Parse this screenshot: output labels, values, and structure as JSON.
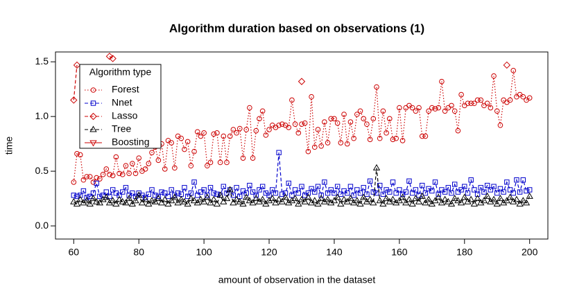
{
  "chart_data": {
    "type": "line",
    "title": "Algorithm duration based on observations (1)",
    "xlabel": "amount of observation in the dataset",
    "ylabel": "time",
    "legend_title": "Algorithm type",
    "legend_position": "topleft",
    "x": [
      60,
      61,
      62,
      63,
      64,
      65,
      66,
      67,
      68,
      69,
      70,
      71,
      72,
      73,
      74,
      75,
      76,
      77,
      78,
      79,
      80,
      81,
      82,
      83,
      84,
      85,
      86,
      87,
      88,
      89,
      90,
      91,
      92,
      93,
      94,
      95,
      96,
      97,
      98,
      99,
      100,
      101,
      102,
      103,
      104,
      105,
      106,
      107,
      108,
      109,
      110,
      111,
      112,
      113,
      114,
      115,
      116,
      117,
      118,
      119,
      120,
      121,
      122,
      123,
      124,
      125,
      126,
      127,
      128,
      129,
      130,
      131,
      132,
      133,
      134,
      135,
      136,
      137,
      138,
      139,
      140,
      141,
      142,
      143,
      144,
      145,
      146,
      147,
      148,
      149,
      150,
      151,
      152,
      153,
      154,
      155,
      156,
      157,
      158,
      159,
      160,
      161,
      162,
      163,
      164,
      165,
      166,
      167,
      168,
      169,
      170,
      171,
      172,
      173,
      174,
      175,
      176,
      177,
      178,
      179,
      180,
      181,
      182,
      183,
      184,
      185,
      186,
      187,
      188,
      189,
      190,
      191,
      192,
      193,
      194,
      195,
      196,
      197,
      198,
      199,
      200
    ],
    "xlim": [
      54.4,
      205.6
    ],
    "xticks": [
      60,
      80,
      100,
      120,
      140,
      160,
      180,
      200
    ],
    "ylim": [
      -0.12,
      1.59
    ],
    "yticks": [
      {
        "value": 0,
        "label": "0.0"
      },
      0.5,
      {
        "value": 1,
        "label": "1.0"
      },
      1.5
    ],
    "series": [
      {
        "name": "Forest",
        "color": "#cc0000",
        "marker": "circle",
        "dash": "dotted",
        "values": [
          0.4,
          0.66,
          0.65,
          0.42,
          0.45,
          0.45,
          0.4,
          0.44,
          0.43,
          0.47,
          0.52,
          0.47,
          0.46,
          0.63,
          0.48,
          0.47,
          0.55,
          0.48,
          0.57,
          0.48,
          0.62,
          0.5,
          0.52,
          0.57,
          0.67,
          0.72,
          0.6,
          0.75,
          0.52,
          0.78,
          0.76,
          0.53,
          0.82,
          0.8,
          0.7,
          0.77,
          0.55,
          0.68,
          0.86,
          0.82,
          0.85,
          0.55,
          0.58,
          0.84,
          0.85,
          0.58,
          0.82,
          0.58,
          0.82,
          0.88,
          0.85,
          0.89,
          0.62,
          0.88,
          1.08,
          0.62,
          0.87,
          0.98,
          1.05,
          0.83,
          0.88,
          0.92,
          0.9,
          0.92,
          0.93,
          0.92,
          0.9,
          1.15,
          0.93,
          0.85,
          0.93,
          0.94,
          0.68,
          1.18,
          0.72,
          0.88,
          0.73,
          0.95,
          0.76,
          0.98,
          0.98,
          0.94,
          0.76,
          1.02,
          0.75,
          0.95,
          0.8,
          1.02,
          1.05,
          0.98,
          0.93,
          0.79,
          0.98,
          1.27,
          0.8,
          1.05,
          0.85,
          0.98,
          0.79,
          0.8,
          1.08,
          0.78,
          1.08,
          1.1,
          1.08,
          1.05,
          1.08,
          0.82,
          0.82,
          1.05,
          1.08,
          1.07,
          1.08,
          1.32,
          1.05,
          1.08,
          1.1,
          1.05,
          0.87,
          1.2,
          1.1,
          1.12,
          1.12,
          1.12,
          1.15,
          1.15,
          1.1,
          1.12,
          1.08,
          1.37,
          1.05,
          0.92,
          1.15,
          1.13,
          1.15,
          1.42,
          1.18,
          1.2,
          1.18,
          1.15,
          1.17
        ]
      },
      {
        "name": "Nnet",
        "color": "#0000cc",
        "marker": "square",
        "dash": "dashed",
        "values": [
          0.28,
          0.27,
          0.28,
          0.32,
          0.26,
          0.27,
          0.3,
          0.39,
          0.27,
          0.28,
          0.31,
          0.27,
          0.33,
          0.3,
          0.28,
          0.31,
          0.35,
          0.28,
          0.3,
          0.27,
          0.3,
          0.28,
          0.26,
          0.29,
          0.33,
          0.28,
          0.27,
          0.31,
          0.3,
          0.27,
          0.33,
          0.28,
          0.3,
          0.29,
          0.35,
          0.27,
          0.3,
          0.4,
          0.28,
          0.31,
          0.33,
          0.28,
          0.35,
          0.3,
          0.29,
          0.28,
          0.36,
          0.3,
          0.33,
          0.28,
          0.35,
          0.27,
          0.32,
          0.3,
          0.37,
          0.31,
          0.28,
          0.33,
          0.36,
          0.3,
          0.28,
          0.33,
          0.3,
          0.67,
          0.29,
          0.3,
          0.39,
          0.28,
          0.33,
          0.3,
          0.36,
          0.28,
          0.3,
          0.34,
          0.31,
          0.36,
          0.28,
          0.4,
          0.3,
          0.33,
          0.3,
          0.36,
          0.29,
          0.32,
          0.3,
          0.36,
          0.28,
          0.33,
          0.3,
          0.35,
          0.29,
          0.41,
          0.31,
          0.3,
          0.37,
          0.29,
          0.33,
          0.31,
          0.4,
          0.3,
          0.33,
          0.29,
          0.31,
          0.41,
          0.3,
          0.33,
          0.28,
          0.37,
          0.3,
          0.34,
          0.32,
          0.4,
          0.29,
          0.33,
          0.31,
          0.35,
          0.3,
          0.38,
          0.31,
          0.33,
          0.36,
          0.3,
          0.42,
          0.33,
          0.29,
          0.35,
          0.31,
          0.37,
          0.33,
          0.36,
          0.3,
          0.34,
          0.31,
          0.4,
          0.33,
          0.3,
          0.42,
          0.31,
          0.42,
          0.32,
          0.33
        ]
      },
      {
        "name": "Lasso",
        "color": "#cc0000",
        "marker": "diamond",
        "dash": "dashed",
        "values": [
          1.15,
          1.47,
          null,
          null,
          null,
          null,
          null,
          null,
          null,
          null,
          null,
          1.55,
          1.53,
          null,
          null,
          null,
          null,
          null,
          null,
          null,
          null,
          null,
          null,
          null,
          null,
          null,
          null,
          null,
          null,
          null,
          null,
          null,
          null,
          null,
          null,
          null,
          null,
          null,
          null,
          null,
          null,
          null,
          null,
          null,
          null,
          null,
          null,
          null,
          null,
          null,
          null,
          null,
          null,
          null,
          null,
          null,
          null,
          null,
          null,
          null,
          null,
          null,
          null,
          null,
          null,
          null,
          null,
          null,
          null,
          null,
          1.32,
          null,
          null,
          null,
          null,
          null,
          null,
          null,
          null,
          null,
          null,
          null,
          null,
          null,
          null,
          null,
          null,
          null,
          null,
          null,
          null,
          null,
          null,
          null,
          null,
          null,
          null,
          null,
          null,
          null,
          null,
          null,
          null,
          null,
          null,
          null,
          null,
          null,
          null,
          null,
          null,
          null,
          null,
          null,
          null,
          null,
          null,
          null,
          null,
          null,
          null,
          null,
          null,
          null,
          null,
          null,
          null,
          null,
          null,
          null,
          null,
          null,
          null,
          1.47,
          null,
          null,
          null,
          null,
          null,
          null,
          null
        ]
      },
      {
        "name": "Tree",
        "color": "#000000",
        "marker": "triangle",
        "dash": "dashed",
        "values": [
          0.22,
          0.2,
          0.24,
          0.21,
          0.23,
          0.2,
          0.25,
          0.22,
          0.21,
          0.24,
          0.26,
          0.21,
          0.23,
          0.2,
          0.24,
          0.22,
          0.21,
          0.25,
          0.2,
          0.23,
          0.28,
          0.21,
          0.24,
          0.2,
          0.23,
          0.22,
          0.25,
          0.21,
          0.24,
          0.2,
          0.23,
          0.26,
          0.21,
          0.24,
          0.22,
          0.2,
          0.25,
          0.23,
          0.21,
          0.24,
          0.22,
          0.26,
          0.21,
          0.24,
          0.2,
          0.28,
          0.22,
          0.25,
          0.33,
          0.21,
          0.24,
          0.22,
          0.2,
          0.26,
          0.23,
          0.21,
          0.25,
          0.22,
          0.24,
          0.2,
          0.23,
          0.25,
          0.21,
          0.24,
          0.22,
          0.26,
          0.21,
          0.23,
          0.25,
          0.2,
          0.24,
          0.22,
          0.26,
          0.21,
          0.23,
          0.2,
          0.25,
          0.22,
          0.24,
          0.21,
          0.23,
          0.26,
          0.2,
          0.24,
          0.22,
          0.25,
          0.21,
          0.23,
          0.2,
          0.26,
          0.22,
          0.24,
          0.21,
          0.53,
          0.23,
          0.2,
          0.25,
          0.22,
          0.24,
          0.21,
          0.23,
          0.26,
          0.21,
          0.24,
          0.2,
          0.25,
          0.22,
          0.27,
          0.21,
          0.24,
          0.2,
          0.23,
          0.26,
          0.21,
          0.24,
          0.22,
          0.2,
          0.25,
          0.23,
          0.21,
          0.26,
          0.22,
          0.24,
          0.2,
          0.25,
          0.21,
          0.23,
          0.27,
          0.22,
          0.24,
          0.2,
          0.25,
          0.21,
          0.23,
          0.26,
          0.22,
          0.24,
          0.2,
          0.23,
          0.21,
          0.27
        ]
      },
      {
        "name": "Boosting",
        "color": "#cc0000",
        "marker": "triangle-down",
        "dash": "solid",
        "values": [
          null,
          null,
          null,
          null,
          null,
          null,
          null,
          null,
          null,
          null,
          null,
          null,
          null,
          null,
          null,
          null,
          null,
          null,
          null,
          null,
          null,
          null,
          null,
          null,
          null,
          null,
          null,
          null,
          null,
          null,
          null,
          null,
          null,
          null,
          null,
          null,
          null,
          null,
          null,
          null,
          null,
          null,
          null,
          null,
          null,
          null,
          null,
          null,
          null,
          null,
          null,
          null,
          null,
          null,
          null,
          null,
          null,
          null,
          null,
          null,
          null,
          null,
          null,
          null,
          null,
          null,
          null,
          null,
          null,
          null,
          null,
          null,
          null,
          null,
          null,
          null,
          null,
          null,
          null,
          null,
          null,
          null,
          null,
          null,
          null,
          null,
          null,
          null,
          null,
          null,
          null,
          null,
          null,
          null,
          null,
          null,
          null,
          null,
          null,
          null,
          null,
          null,
          null,
          null,
          null,
          null,
          null,
          null,
          null,
          null,
          null,
          null,
          null,
          null,
          null,
          null,
          null,
          null,
          null,
          null,
          null,
          null,
          null,
          null,
          null,
          null,
          null,
          null,
          null,
          null,
          null,
          null,
          null,
          null,
          null,
          null,
          null,
          null,
          null,
          null,
          null
        ]
      }
    ]
  }
}
